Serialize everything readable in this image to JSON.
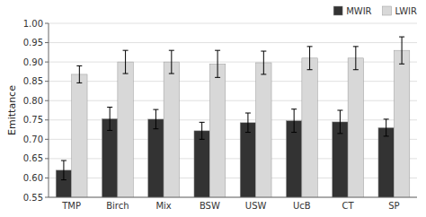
{
  "chart_data": {
    "type": "bar",
    "categories": [
      "TMP",
      "Birch",
      "Mix",
      "BSW",
      "USW",
      "UcB",
      "CT",
      "SP"
    ],
    "series": [
      {
        "name": "MWIR",
        "color": "#333333",
        "values": [
          0.62,
          0.753,
          0.752,
          0.722,
          0.743,
          0.748,
          0.745,
          0.73
        ],
        "errors": [
          0.025,
          0.03,
          0.025,
          0.022,
          0.025,
          0.03,
          0.03,
          0.022
        ]
      },
      {
        "name": "LWIR",
        "color": "#d8d8d8",
        "values": [
          0.868,
          0.9,
          0.9,
          0.895,
          0.898,
          0.91,
          0.91,
          0.93
        ],
        "errors": [
          0.022,
          0.03,
          0.03,
          0.035,
          0.03,
          0.03,
          0.03,
          0.035
        ]
      }
    ],
    "ylabel": "Emittance",
    "ylim": [
      0.55,
      1.0
    ],
    "yticks": [
      0.55,
      {
        "value": 0.6,
        "label": "0.60"
      },
      0.65,
      {
        "value": 0.7,
        "label": "0.70"
      },
      0.75,
      {
        "value": 0.8,
        "label": "0.80"
      },
      0.85,
      {
        "value": 0.9,
        "label": "0.90"
      },
      0.95,
      {
        "value": 1.0,
        "label": "1.00"
      }
    ],
    "grid": true,
    "legend": "upper right"
  }
}
